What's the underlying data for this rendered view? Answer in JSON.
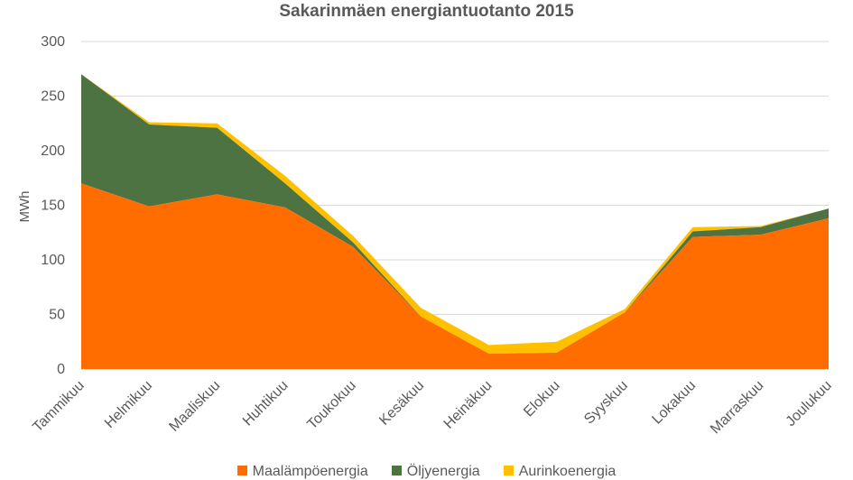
{
  "chart_data": {
    "type": "area",
    "stacked": true,
    "title": "Sakarinmäen energiantuotanto 2015",
    "xlabel": "",
    "ylabel": "MWh",
    "ylim": [
      0,
      300
    ],
    "yticks": [
      0,
      50,
      100,
      150,
      200,
      250,
      300
    ],
    "grid": true,
    "legend_position": "bottom",
    "categories": [
      "Tammikuu",
      "Helmikuu",
      "Maaliskuu",
      "Huhtikuu",
      "Toukokuu",
      "Kesäkuu",
      "Heinäkuu",
      "Elokuu",
      "Syyskuu",
      "Lokakuu",
      "Marraskuu",
      "Joulukuu"
    ],
    "series": [
      {
        "name": "Maalämpöenergia",
        "color": "#FF6D00",
        "values": [
          170,
          149,
          160,
          148,
          112,
          48,
          14,
          15,
          52,
          121,
          123,
          138
        ]
      },
      {
        "name": "Öljyenergia",
        "color": "#4E7343",
        "values": [
          100,
          75,
          61,
          22,
          4,
          0,
          0,
          0,
          0,
          5,
          7,
          9
        ]
      },
      {
        "name": "Aurinkoenergia",
        "color": "#FFC000",
        "values": [
          0,
          2,
          4,
          7,
          6,
          8,
          8,
          10,
          3,
          4,
          1,
          0
        ]
      }
    ]
  }
}
